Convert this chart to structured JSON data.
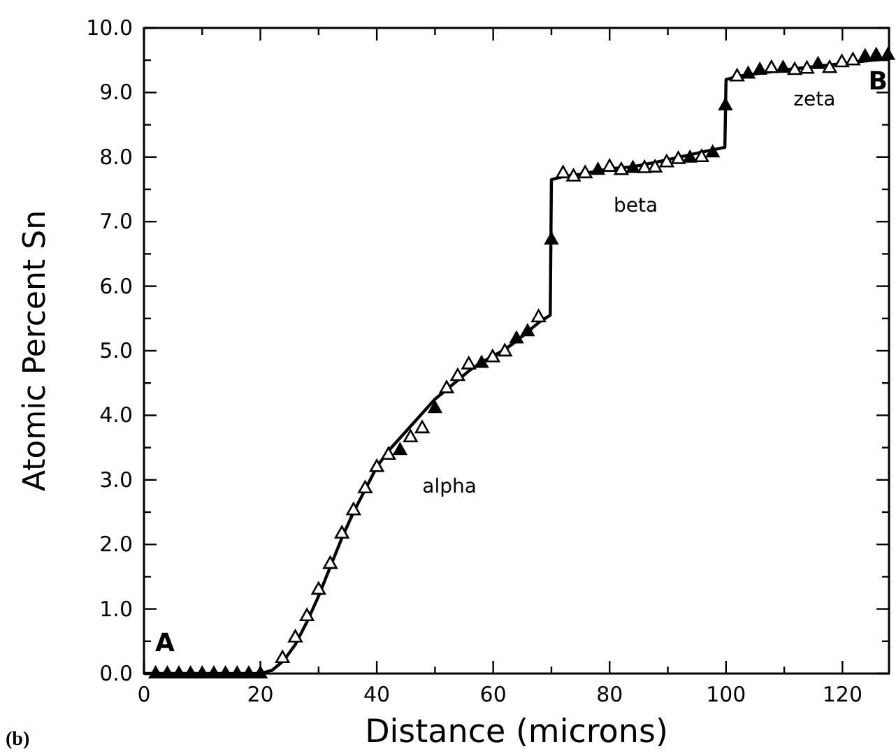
{
  "chart_data": {
    "type": "scatter",
    "xlabel": "Distance (microns)",
    "ylabel": "Atomic Percent Sn",
    "xlim": [
      0,
      128
    ],
    "ylim": [
      0,
      10
    ],
    "xticks": [
      0,
      {
        "value": 10,
        "label": null
      },
      20,
      {
        "value": 30,
        "label": null
      },
      40,
      {
        "value": 50,
        "label": null
      },
      60,
      {
        "value": 70,
        "label": null
      },
      80,
      {
        "value": 90,
        "label": null
      },
      100,
      {
        "value": 110,
        "label": null
      },
      120
    ],
    "yticks": [
      {
        "value": 0,
        "label": "0.0"
      },
      {
        "value": 0.5,
        "label": null
      },
      {
        "value": 1,
        "label": "1.0"
      },
      {
        "value": 1.5,
        "label": null
      },
      {
        "value": 2,
        "label": "2.0"
      },
      {
        "value": 2.5,
        "label": null
      },
      {
        "value": 3,
        "label": "3.0"
      },
      {
        "value": 3.5,
        "label": null
      },
      {
        "value": 4,
        "label": "4.0"
      },
      {
        "value": 4.5,
        "label": null
      },
      {
        "value": 5,
        "label": "5.0"
      },
      {
        "value": 5.5,
        "label": null
      },
      {
        "value": 6,
        "label": "6.0"
      },
      {
        "value": 6.5,
        "label": null
      },
      {
        "value": 7,
        "label": "7.0"
      },
      {
        "value": 7.5,
        "label": null
      },
      {
        "value": 8,
        "label": "8.0"
      },
      {
        "value": 8.5,
        "label": null
      },
      {
        "value": 9,
        "label": "9.0"
      },
      {
        "value": 9.5,
        "label": null
      },
      {
        "value": 10,
        "label": "10.0"
      }
    ],
    "grid": false,
    "series": [
      {
        "type": "line",
        "color": "#000000",
        "marker": "none",
        "line_style": "solid",
        "x": [
          0,
          20,
          22,
          24,
          26,
          28,
          30,
          32,
          34,
          36,
          38,
          40,
          42,
          44,
          46,
          48,
          50,
          52,
          54,
          56,
          58,
          60,
          62,
          64,
          66,
          68,
          69.8,
          70,
          72,
          74,
          76,
          80,
          84,
          88,
          92,
          96,
          99.8,
          100,
          102,
          106,
          110,
          115,
          120,
          125,
          128
        ],
        "values": [
          0,
          0,
          0.05,
          0.2,
          0.45,
          0.8,
          1.2,
          1.65,
          2.1,
          2.5,
          2.85,
          3.2,
          3.45,
          3.65,
          3.85,
          4.05,
          4.25,
          4.4,
          4.55,
          4.7,
          4.82,
          4.92,
          5.02,
          5.15,
          5.3,
          5.45,
          5.55,
          7.65,
          7.7,
          7.72,
          7.75,
          7.82,
          7.85,
          7.92,
          8.0,
          8.08,
          8.15,
          9.2,
          9.25,
          9.3,
          9.35,
          9.4,
          9.45,
          9.5,
          9.52
        ]
      },
      {
        "color": "#000000",
        "marker": "triangle",
        "x": [
          23.8,
          26,
          28,
          30,
          32,
          34,
          36,
          38,
          40,
          42,
          45.8,
          47.8,
          52,
          53.9,
          55.8,
          59.9,
          62,
          67.8,
          72,
          73.8,
          75.8,
          80,
          82,
          86,
          87.8,
          89.8,
          91.8,
          95.8,
          101.9,
          107.8,
          111.8,
          113.9,
          117.8,
          119.9,
          121.8
        ],
        "values": [
          0.24,
          0.56,
          0.89,
          1.3,
          1.7,
          2.17,
          2.53,
          2.87,
          3.2,
          3.39,
          3.66,
          3.8,
          4.42,
          4.61,
          4.79,
          4.9,
          4.99,
          5.52,
          7.75,
          7.7,
          7.75,
          7.85,
          7.8,
          7.83,
          7.84,
          7.92,
          7.97,
          8.0,
          9.25,
          9.38,
          9.35,
          9.37,
          9.38,
          9.47,
          9.5
        ]
      },
      {
        "color": "#000000",
        "marker": "triangle",
        "x": [
          2,
          4,
          6,
          8,
          10,
          12,
          14,
          16,
          18,
          20,
          44,
          50,
          58,
          64,
          65.9,
          70,
          78,
          84,
          93.8,
          97.7,
          99.9,
          103.8,
          105.8,
          109.8,
          115.8,
          123.9,
          125.8,
          127.8
        ],
        "values": [
          0,
          0,
          0,
          0,
          0,
          0,
          0,
          0,
          0,
          0,
          3.46,
          4.11,
          4.81,
          5.19,
          5.3,
          6.72,
          7.8,
          7.83,
          7.99,
          8.07,
          8.8,
          9.29,
          9.35,
          9.38,
          9.44,
          9.56,
          9.58,
          9.58
        ]
      }
    ],
    "annotations": [
      "A",
      "B",
      "alpha",
      "beta",
      "zeta",
      "(b)"
    ]
  }
}
